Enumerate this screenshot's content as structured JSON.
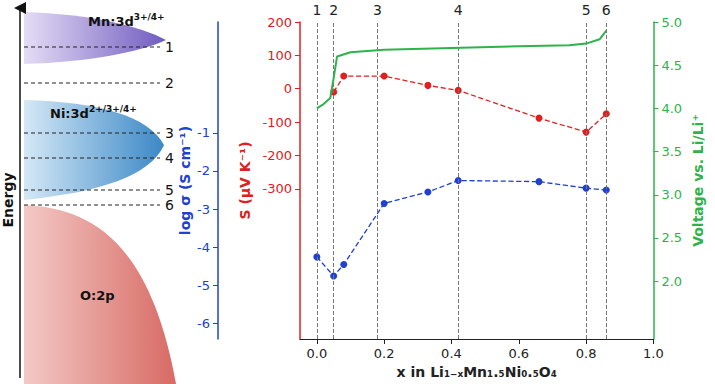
{
  "chart_data": {
    "type": "line",
    "xlabel": "x in Li₁₋ₓMn₁.₅Ni₀.₅O₄",
    "xlim": [
      -0.05,
      1.0
    ],
    "xticks": [
      {
        "value": 0,
        "label": "0.0"
      },
      {
        "value": 0.2,
        "label": "0.2"
      },
      {
        "value": 0.4,
        "label": "0.4"
      },
      {
        "value": 0.6,
        "label": "0.6"
      },
      {
        "value": 0.8,
        "label": "0.8"
      },
      {
        "value": 1,
        "label": "1.0"
      }
    ],
    "ylabel": "S (μV K⁻¹)",
    "ylim": [
      -750,
      200
    ],
    "yticks": [
      -300,
      -200,
      -100,
      0,
      100,
      200
    ],
    "y2label": "log σ (S cm⁻¹)",
    "y2lim": [
      -6.4,
      1.9
    ],
    "y2ticks": [
      -6,
      -5,
      -4,
      -3,
      -2,
      -1
    ],
    "y3label": "Voltage vs. Li/Li⁺",
    "y3lim": [
      1.33,
      5.0
    ],
    "y3ticks": [
      {
        "value": 2,
        "label": "2.0"
      },
      {
        "value": 2.5,
        "label": "2.5"
      },
      {
        "value": 3,
        "label": "3.0"
      },
      {
        "value": 3.5,
        "label": "3.5"
      },
      {
        "value": 4,
        "label": "4.0"
      },
      {
        "value": 4.5,
        "label": "4.5"
      },
      {
        "value": 5,
        "label": "5.0"
      }
    ],
    "grid": false,
    "series": [
      {
        "type": "line",
        "axis": "y",
        "color": "#e02020",
        "marker": "circle",
        "line_style": "dashed",
        "x": [
          0.05,
          0.08,
          0.2,
          0.33,
          0.42,
          0.66,
          0.8,
          0.86
        ],
        "values": [
          -10,
          38,
          38,
          10,
          -5,
          -88,
          -130,
          -75
        ]
      },
      {
        "type": "line",
        "axis": "y2",
        "color": "#2040d0",
        "marker": "circle",
        "line_style": "dashed",
        "x": [
          0.0,
          0.05,
          0.08,
          0.2,
          0.33,
          0.42,
          0.66,
          0.8,
          0.86
        ],
        "values": [
          -4.25,
          -4.75,
          -4.45,
          -2.85,
          -2.55,
          -2.25,
          -2.28,
          -2.45,
          -2.5
        ]
      },
      {
        "type": "line",
        "axis": "y3",
        "color": "#2db34a",
        "marker": "none",
        "line_style": "solid",
        "x": [
          0.0,
          0.02,
          0.04,
          0.05,
          0.06,
          0.1,
          0.2,
          0.4,
          0.6,
          0.75,
          0.8,
          0.84,
          0.86
        ],
        "values": [
          4.0,
          4.05,
          4.12,
          4.35,
          4.6,
          4.65,
          4.68,
          4.7,
          4.72,
          4.73,
          4.75,
          4.8,
          4.9
        ]
      }
    ],
    "annotations": [
      {
        "x": 0.0,
        "label": "1"
      },
      {
        "x": 0.05,
        "label": "2"
      },
      {
        "x": 0.18,
        "label": "3"
      },
      {
        "x": 0.42,
        "label": "4"
      },
      {
        "x": 0.8,
        "label": "5"
      },
      {
        "x": 0.86,
        "label": "6"
      }
    ]
  },
  "diagram": {
    "axis_label": "Energy",
    "bands": [
      {
        "label": "Mn:3d",
        "superscript": "3+/4+"
      },
      {
        "label": "Ni:3d",
        "superscript": "2+/3+/4+"
      },
      {
        "label": "O:2p"
      }
    ],
    "levels": [
      "1",
      "2",
      "3",
      "4",
      "5",
      "6"
    ]
  }
}
